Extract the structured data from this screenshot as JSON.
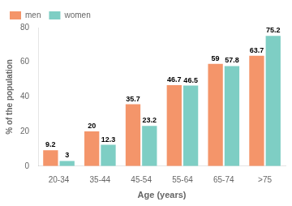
{
  "chart_data": {
    "type": "bar",
    "categories": [
      "20-34",
      "35-44",
      "45-54",
      "55-64",
      "65-74",
      ">75"
    ],
    "series": [
      {
        "name": "men",
        "color": "#F4956A",
        "values": [
          9.2,
          20,
          35.7,
          46.7,
          59,
          63.7
        ]
      },
      {
        "name": "women",
        "color": "#7ECEC4",
        "values": [
          3,
          12.3,
          23.2,
          46.5,
          57.8,
          75.2
        ]
      }
    ],
    "xlabel": "Age (years)",
    "ylabel": "% of the population",
    "ylim": [
      0,
      80
    ],
    "yticks": [
      0,
      20,
      40,
      60,
      80
    ],
    "grid": false,
    "legend": "upper left",
    "data_labels": true
  }
}
